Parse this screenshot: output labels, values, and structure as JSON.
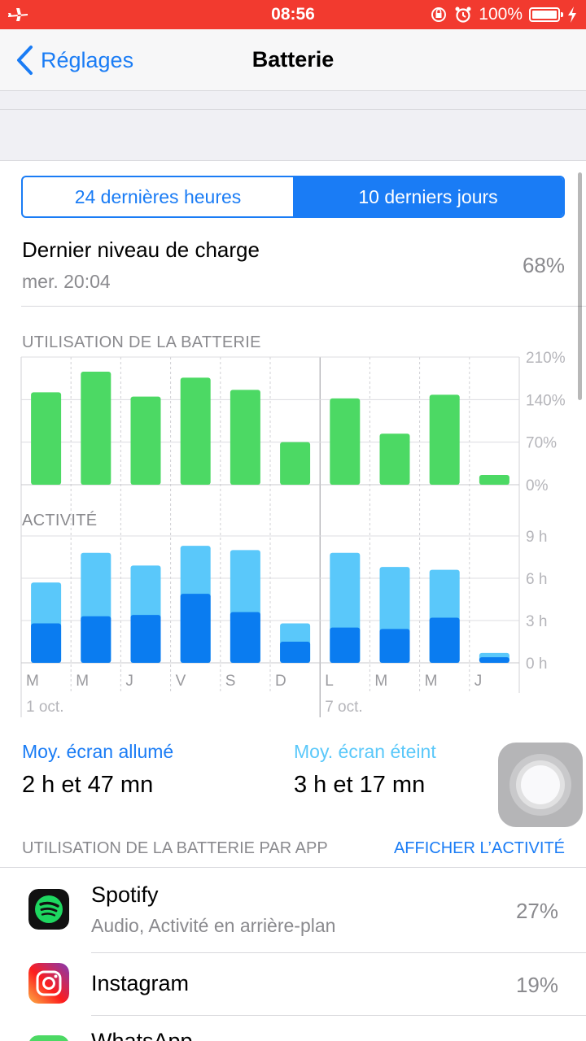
{
  "status_bar": {
    "time": "08:56",
    "battery_percent": "100%",
    "accent": "#f23a2f"
  },
  "nav": {
    "back_label": "Réglages",
    "title": "Batterie"
  },
  "segments": {
    "left": "24 dernières heures",
    "right": "10 derniers jours",
    "selected": "10 derniers jours"
  },
  "last_charge": {
    "title": "Dernier niveau de charge",
    "time": "mer. 20:04",
    "level": "68%"
  },
  "usage_chart": {
    "label": "UTILISATION DE LA BATTERIE",
    "y_ticks": [
      "210%",
      "140%",
      "70%",
      "0%"
    ],
    "color": "#4cd964"
  },
  "activity_chart": {
    "label": "ACTIVITÉ",
    "y_ticks": [
      "9 h",
      "6 h",
      "3 h",
      "0 h"
    ],
    "color_screen_on": "#0a7cf0",
    "color_screen_off": "#5ac8fa",
    "date_labels": [
      "1 oct.",
      "7 oct."
    ]
  },
  "chart_data": [
    {
      "type": "bar",
      "title": "UTILISATION DE LA BATTERIE",
      "categories": [
        "M",
        "M",
        "J",
        "V",
        "S",
        "D",
        "L",
        "M",
        "M",
        "J"
      ],
      "values": [
        152,
        186,
        145,
        176,
        156,
        70,
        142,
        84,
        148,
        16
      ],
      "ylim": [
        0,
        210
      ]
    },
    {
      "type": "bar",
      "title": "ACTIVITÉ",
      "categories": [
        "M",
        "M",
        "J",
        "V",
        "S",
        "D",
        "L",
        "M",
        "M",
        "J"
      ],
      "series": [
        {
          "values": [
            2.8,
            3.3,
            3.4,
            4.9,
            3.6,
            1.5,
            2.5,
            2.4,
            3.2,
            0.4
          ]
        },
        {
          "values": [
            2.9,
            4.5,
            3.5,
            3.4,
            4.4,
            1.3,
            5.3,
            4.4,
            3.4,
            0.3
          ]
        }
      ],
      "ylim": [
        0,
        9
      ]
    }
  ],
  "averages": {
    "screen_on_label": "Moy. écran allumé",
    "screen_on_value": "2 h et 47 mn",
    "screen_off_label": "Moy. écran éteint",
    "screen_off_value": "3 h et 17 mn"
  },
  "app_section": {
    "title": "UTILISATION DE LA BATTERIE PAR APP",
    "action": "AFFICHER L’ACTIVITÉ"
  },
  "apps": [
    {
      "name": "Spotify",
      "detail": "Audio, Activité en arrière-plan",
      "percent": "27%",
      "icon": "spotify-icon"
    },
    {
      "name": "Instagram",
      "detail": "",
      "percent": "19%",
      "icon": "instagram-icon"
    },
    {
      "name": "WhatsApp",
      "detail": "",
      "percent": "",
      "icon": "whatsapp-icon"
    }
  ]
}
